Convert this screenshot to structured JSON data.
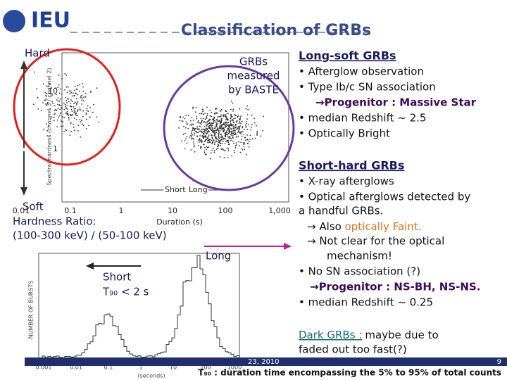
{
  "header": {
    "logo": "IEU",
    "title": "Classification of GRBs"
  },
  "left": {
    "hard": "Hard",
    "soft": "Soft",
    "ratio": [
      "Hardness Ratio:",
      "(100-300 keV) / (50-100 keV)"
    ],
    "measured": [
      "GRBs",
      "measured",
      "by BASTE"
    ],
    "long": "Long",
    "short": "Short",
    "t90": "T₉₀ < 2 s"
  },
  "scatter_plot": {
    "y_label": "Spectral hardness (channel 3 / channel 2)",
    "y_ticks": [
      "10",
      "1"
    ],
    "x_ticks": [
      "0.01",
      "0.1",
      "1",
      "10",
      "100",
      "1,000"
    ],
    "x_label": "Duration (s)",
    "legend": [
      "Short",
      "Long"
    ]
  },
  "histogram": {
    "y_label": "NUMBER OF BURSTS",
    "x_ticks": [
      "0.001",
      "0.01",
      "0.1",
      "1",
      "10",
      "100",
      "1000"
    ],
    "x_label": "(seconds)"
  },
  "long_soft": {
    "heading": "Long-soft GRBs",
    "lines": [
      "• Afterglow observation",
      "• Type Ib/c SN association",
      "→Progenitor : Massive Star",
      "• median Redshift ~ 2.5",
      "• Optically Bright"
    ]
  },
  "short_hard": {
    "heading": "Short-hard GRBs",
    "lines": [
      "• X-ray afterglows",
      "• Optical afterglows detected by",
      "a handful GRBs.",
      "→ Also ",
      "optically Faint.",
      "→ Not clear for the optical",
      "mechanism!",
      "• No SN association (?)",
      "→Progenitor : NS-BH, NS-NS.",
      "• median Redshift ~ 0.25"
    ]
  },
  "dark": {
    "heading": "Dark GRBs :",
    "lines": [
      "maybe due to",
      "faded out too fast(?)"
    ]
  },
  "footer": {
    "date": "23, 2010",
    "page": "9",
    "note": "T₉₀ : duration time encompassing the 5% to 95% of total counts"
  }
}
